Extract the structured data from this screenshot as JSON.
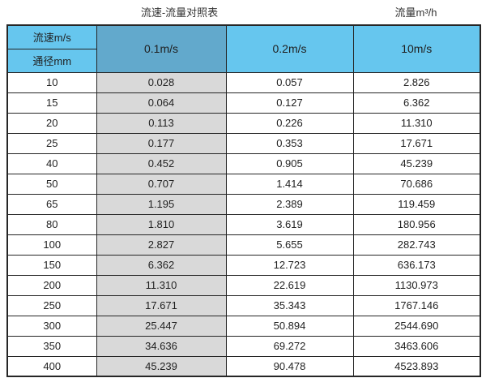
{
  "page": {
    "title_left": "流速-流量对照表",
    "title_right": "流量m³/h"
  },
  "table": {
    "header": {
      "velocity_label": "流速m/s",
      "diameter_label": "通径mm",
      "columns": [
        "0.1m/s",
        "0.2m/s",
        "10m/s"
      ]
    },
    "rows": [
      {
        "dn": "10",
        "v01": "0.028",
        "v02": "0.057",
        "v10": "2.826"
      },
      {
        "dn": "15",
        "v01": "0.064",
        "v02": "0.127",
        "v10": "6.362"
      },
      {
        "dn": "20",
        "v01": "0.113",
        "v02": "0.226",
        "v10": "11.310"
      },
      {
        "dn": "25",
        "v01": "0.177",
        "v02": "0.353",
        "v10": "17.671"
      },
      {
        "dn": "40",
        "v01": "0.452",
        "v02": "0.905",
        "v10": "45.239"
      },
      {
        "dn": "50",
        "v01": "0.707",
        "v02": "1.414",
        "v10": "70.686"
      },
      {
        "dn": "65",
        "v01": "1.195",
        "v02": "2.389",
        "v10": "119.459"
      },
      {
        "dn": "80",
        "v01": "1.810",
        "v02": "3.619",
        "v10": "180.956"
      },
      {
        "dn": "100",
        "v01": "2.827",
        "v02": "5.655",
        "v10": "282.743"
      },
      {
        "dn": "150",
        "v01": "6.362",
        "v02": "12.723",
        "v10": "636.173"
      },
      {
        "dn": "200",
        "v01": "11.310",
        "v02": "22.619",
        "v10": "1130.973"
      },
      {
        "dn": "250",
        "v01": "17.671",
        "v02": "35.343",
        "v10": "1767.146"
      },
      {
        "dn": "300",
        "v01": "25.447",
        "v02": "50.894",
        "v10": "2544.690"
      },
      {
        "dn": "350",
        "v01": "34.636",
        "v02": "69.272",
        "v10": "3463.606"
      },
      {
        "dn": "400",
        "v01": "45.239",
        "v02": "90.478",
        "v10": "4523.893"
      }
    ]
  },
  "colors": {
    "header_blue": "#66c6ee",
    "header_dark_blue": "#62a9cc",
    "gray_column": "#d9d9d9",
    "border": "#262626"
  },
  "chart_data": {
    "type": "table",
    "title": "流速-流量对照表",
    "columns": [
      "通径mm",
      "0.1m/s",
      "0.2m/s",
      "10m/s"
    ],
    "unit": "流量m³/h",
    "rows": [
      [
        10,
        0.028,
        0.057,
        2.826
      ],
      [
        15,
        0.064,
        0.127,
        6.362
      ],
      [
        20,
        0.113,
        0.226,
        11.31
      ],
      [
        25,
        0.177,
        0.353,
        17.671
      ],
      [
        40,
        0.452,
        0.905,
        45.239
      ],
      [
        50,
        0.707,
        1.414,
        70.686
      ],
      [
        65,
        1.195,
        2.389,
        119.459
      ],
      [
        80,
        1.81,
        3.619,
        180.956
      ],
      [
        100,
        2.827,
        5.655,
        282.743
      ],
      [
        150,
        6.362,
        12.723,
        636.173
      ],
      [
        200,
        11.31,
        22.619,
        1130.973
      ],
      [
        250,
        17.671,
        35.343,
        1767.146
      ],
      [
        300,
        25.447,
        50.894,
        2544.69
      ],
      [
        350,
        34.636,
        69.272,
        3463.606
      ],
      [
        400,
        45.239,
        90.478,
        4523.893
      ]
    ]
  }
}
